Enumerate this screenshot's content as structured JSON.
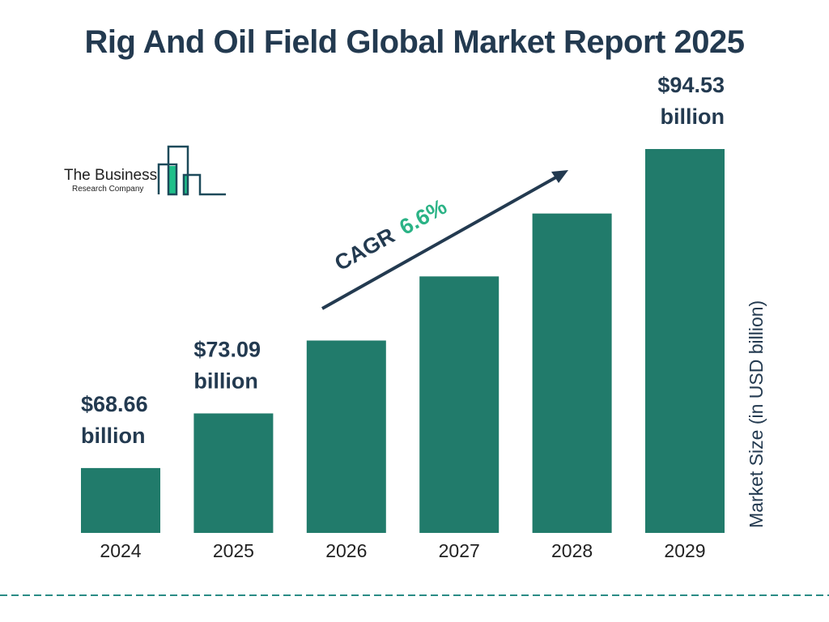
{
  "title": "Rig And Oil Field Global Market Report 2025",
  "logo": {
    "line1": "The Business",
    "line2": "Research Company"
  },
  "colors": {
    "bar": "#217b6b",
    "text": "#233a50",
    "cagr": "#2bb386",
    "logo_accent": "#1fbf8a"
  },
  "cagr": {
    "label": "CAGR",
    "value": "6.6%"
  },
  "chart_data": {
    "type": "bar",
    "categories": [
      "2024",
      "2025",
      "2026",
      "2027",
      "2028",
      "2029"
    ],
    "values": [
      68.66,
      73.09,
      79.0,
      84.2,
      89.3,
      94.53
    ],
    "data_labels": [
      {
        "index": 0,
        "value": "$68.66",
        "unit": "billion"
      },
      {
        "index": 1,
        "value": "$73.09",
        "unit": "billion"
      },
      {
        "index": 5,
        "value": "$94.53",
        "unit": "billion"
      }
    ],
    "title": "Rig And Oil Field Global Market Report 2025",
    "xlabel": "",
    "ylabel": "Market Size (in USD billion)",
    "ylim": [
      63.4,
      94.53
    ],
    "grid": false
  }
}
